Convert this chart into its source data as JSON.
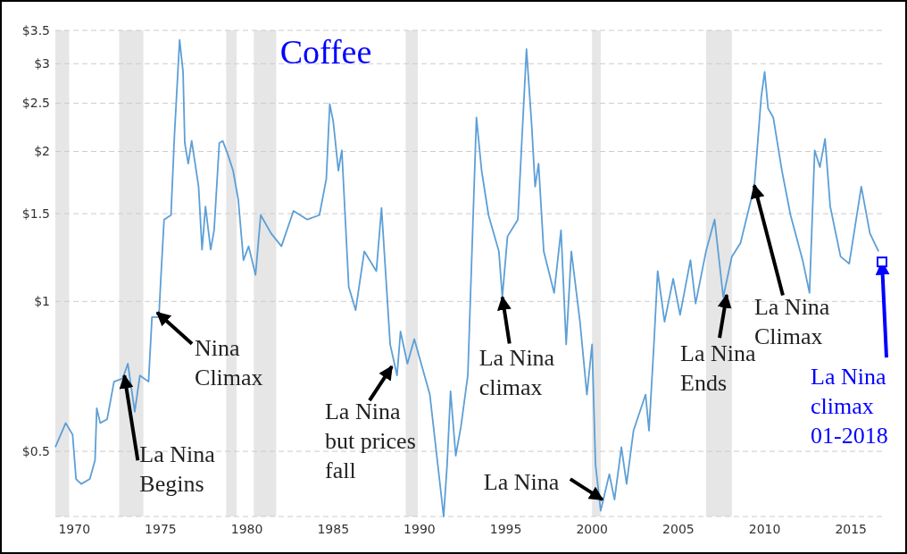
{
  "chart_data": {
    "type": "line",
    "title": "Coffee",
    "x": [
      1968.9,
      1969.5,
      1969.9,
      1970.1,
      1970.4,
      1970.9,
      1971.2,
      1971.3,
      1971.5,
      1971.9,
      1972.3,
      1972.8,
      1973.1,
      1973.5,
      1973.8,
      1974.3,
      1974.5,
      1974.9,
      1975.0,
      1975.2,
      1975.6,
      1975.8,
      1976.0,
      1976.1,
      1976.3,
      1976.4,
      1976.6,
      1976.8,
      1977.0,
      1977.2,
      1977.4,
      1977.6,
      1977.9,
      1978.1,
      1978.4,
      1978.6,
      1978.9,
      1979.2,
      1979.5,
      1979.8,
      1980.1,
      1980.5,
      1980.8,
      1981.4,
      1982.0,
      1982.7,
      1983.5,
      1984.2,
      1984.6,
      1984.8,
      1985.0,
      1985.3,
      1985.5,
      1985.9,
      1986.3,
      1986.8,
      1987.5,
      1987.8,
      1988.3,
      1988.7,
      1988.9,
      1989.3,
      1989.7,
      1990.6,
      1991.4,
      1991.6,
      1991.8,
      1992.1,
      1992.4,
      1992.8,
      1993.3,
      1993.6,
      1994.0,
      1994.6,
      1994.8,
      1995.1,
      1995.7,
      1996.2,
      1996.5,
      1996.7,
      1996.9,
      1997.2,
      1997.8,
      1998.2,
      1998.5,
      1998.8,
      1999.3,
      1999.7,
      2000.0,
      2000.2,
      2000.5,
      2001.0,
      2001.3,
      2001.7,
      2002.0,
      2002.4,
      2003.1,
      2003.3,
      2003.6,
      2003.8,
      2004.2,
      2004.7,
      2005.1,
      2005.7,
      2006.0,
      2006.6,
      2007.1,
      2007.6,
      2008.1,
      2008.6,
      2009.4,
      2009.8,
      2010.0,
      2010.2,
      2010.5,
      2011.0,
      2011.5,
      2012.2,
      2012.6,
      2012.9,
      2013.2,
      2013.5,
      2013.8,
      2014.4,
      2014.9,
      2015.6,
      2016.1,
      2016.6
    ],
    "series": [
      {
        "color": "#5d9fd6",
        "values": [
          0.51,
          0.57,
          0.54,
          0.44,
          0.43,
          0.44,
          0.48,
          0.61,
          0.57,
          0.58,
          0.69,
          0.7,
          0.75,
          0.6,
          0.71,
          0.69,
          0.93,
          0.93,
          1.09,
          1.46,
          1.49,
          2.15,
          2.89,
          3.35,
          2.89,
          2.08,
          1.89,
          2.1,
          1.89,
          1.7,
          1.27,
          1.55,
          1.27,
          1.39,
          2.08,
          2.1,
          1.97,
          1.83,
          1.6,
          1.21,
          1.29,
          1.13,
          1.49,
          1.37,
          1.29,
          1.52,
          1.46,
          1.49,
          1.76,
          2.49,
          2.3,
          1.83,
          2.01,
          1.07,
          0.96,
          1.26,
          1.15,
          1.54,
          0.82,
          0.71,
          0.87,
          0.75,
          0.84,
          0.65,
          0.37,
          0.47,
          0.66,
          0.49,
          0.56,
          0.71,
          2.34,
          1.83,
          1.49,
          1.26,
          1.02,
          1.35,
          1.46,
          3.21,
          2.26,
          1.7,
          1.89,
          1.26,
          1.04,
          1.39,
          0.82,
          1.26,
          0.91,
          0.65,
          0.82,
          0.47,
          0.38,
          0.45,
          0.4,
          0.51,
          0.43,
          0.55,
          0.65,
          0.55,
          0.84,
          1.15,
          0.91,
          1.11,
          0.94,
          1.21,
          0.99,
          1.26,
          1.46,
          1.02,
          1.23,
          1.31,
          1.7,
          2.57,
          2.89,
          2.44,
          2.34,
          1.83,
          1.49,
          1.21,
          1.04,
          2.01,
          1.86,
          2.12,
          1.55,
          1.23,
          1.19,
          1.7,
          1.37,
          1.26
        ]
      }
    ],
    "log": true,
    "xlim": [
      1968.9,
      2016.8
    ],
    "ylim": [
      0.37,
      3.5
    ],
    "xticks": [
      1970,
      1975,
      1980,
      1985,
      1990,
      1995,
      2000,
      2005,
      2010,
      2015
    ],
    "yticks": [
      {
        "value": 0.5,
        "label": "$0.5"
      },
      {
        "value": 1,
        "label": "$1"
      },
      {
        "value": 1.5,
        "label": "$1.5"
      },
      {
        "value": 2,
        "label": "$2"
      },
      {
        "value": 2.5,
        "label": "$2.5"
      },
      {
        "value": 3,
        "label": "$3"
      },
      {
        "value": 3.5,
        "label": "$3.5"
      }
    ],
    "grid": "y",
    "bands": [
      {
        "axis": "x",
        "from": 1968.9,
        "to": 1969.7,
        "color": "#e6e6e6"
      },
      {
        "axis": "x",
        "from": 1972.6,
        "to": 1974.0,
        "color": "#e6e6e6"
      },
      {
        "axis": "x",
        "from": 1978.8,
        "to": 1979.4,
        "color": "#e6e6e6"
      },
      {
        "axis": "x",
        "from": 1980.4,
        "to": 1981.7,
        "color": "#e6e6e6"
      },
      {
        "axis": "x",
        "from": 1989.2,
        "to": 1989.9,
        "color": "#e6e6e6"
      },
      {
        "axis": "x",
        "from": 2000.0,
        "to": 2000.5,
        "color": "#e6e6e6"
      },
      {
        "axis": "x",
        "from": 2006.6,
        "to": 2008.1,
        "color": "#e6e6e6"
      }
    ],
    "annotations": [
      {
        "text": "Nina\nClimax",
        "x": 1974.8,
        "y": 0.95
      },
      {
        "text": "La Nina\nBegins",
        "x": 1972.9,
        "y": 0.71
      },
      {
        "text": "La Nina\nbut prices\nfall",
        "x": 1988.4,
        "y": 0.74
      },
      {
        "text": "La Nina\nclimax",
        "x": 1994.8,
        "y": 1.02
      },
      {
        "text": "La Nina",
        "x": 2000.6,
        "y": 0.4
      },
      {
        "text": "La Nina\nEnds",
        "x": 2007.8,
        "y": 1.03
      },
      {
        "text": "La Nina\nClimax",
        "x": 2009.4,
        "y": 1.71
      },
      {
        "text": "La Nina\nclimax\n01-2018",
        "x": 2016.8,
        "y": 1.2
      }
    ]
  }
}
